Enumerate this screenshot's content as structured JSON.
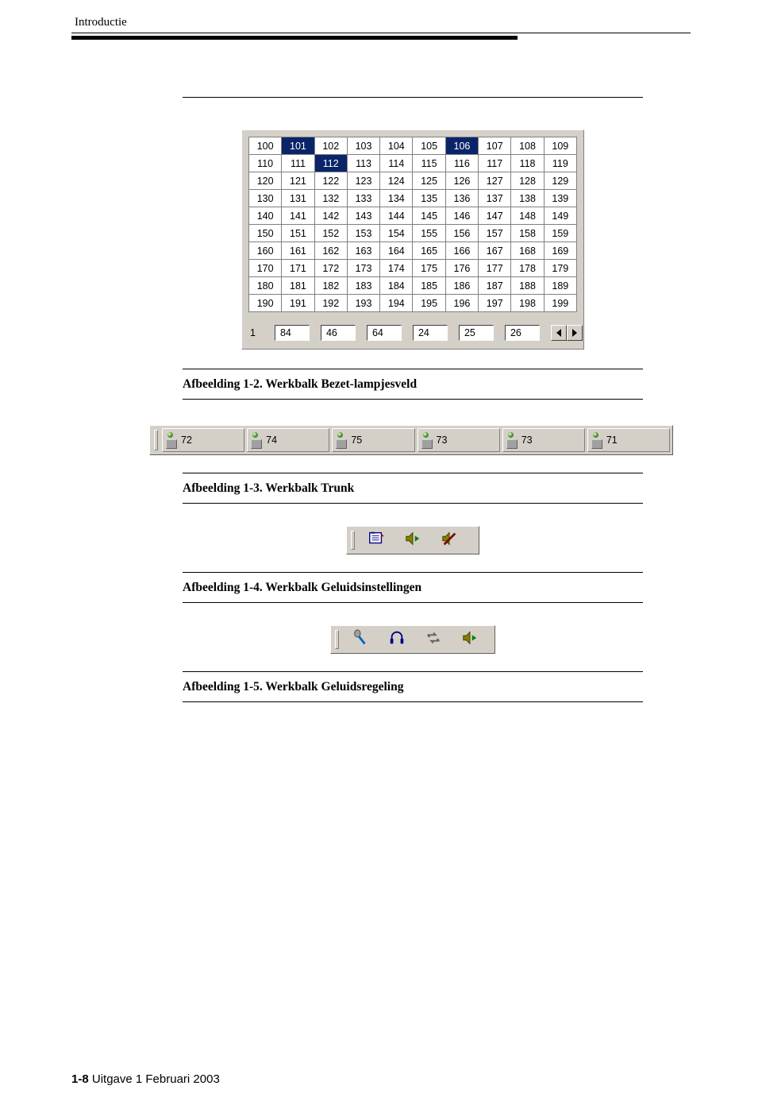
{
  "header": {
    "title": "Introductie"
  },
  "figure12": {
    "grid": {
      "start": 100,
      "rows": 10,
      "cols": 10,
      "selected": [
        101,
        106,
        112
      ],
      "selected_bg": "#0a246a",
      "selected_fg": "#ffffff",
      "cell_bg": "#ffffff",
      "border_color": "#808080",
      "font_family": "Tahoma",
      "font_size": 12.5
    },
    "panel_bg": "#d4d0c8",
    "bottom": {
      "prefix": "1",
      "values": [
        "84",
        "46",
        "64",
        "24",
        "25",
        "26"
      ]
    },
    "caption": "Afbeelding 1-2.   Werkbalk Bezet-lampjesveld"
  },
  "figure13": {
    "items": [
      "72",
      "74",
      "75",
      "73",
      "73",
      "71"
    ],
    "lamp_color": "#4fa030",
    "bar_bg": "#d4d0c8",
    "caption": "Afbeelding 1-3.   Werkbalk Trunk"
  },
  "figure14": {
    "icons": [
      "directory-icon",
      "speaker-play-icon",
      "speaker-mute-icon"
    ],
    "bar_bg": "#d4d0c8",
    "caption": "Afbeelding 1-4.   Werkbalk Geluidsinstellingen"
  },
  "figure15": {
    "icons": [
      "microphone-icon",
      "headset-icon",
      "transfer-icon",
      "speaker-play-icon"
    ],
    "bar_bg": "#d4d0c8",
    "caption": "Afbeelding 1-5.   Werkbalk Geluidsregeling"
  },
  "footer": {
    "page": "1-8",
    "rest": "   Uitgave  1   Februari 2003"
  }
}
